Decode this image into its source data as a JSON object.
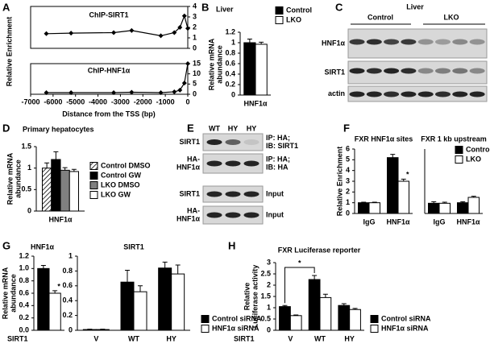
{
  "panel_letters": [
    "A",
    "B",
    "C",
    "D",
    "E",
    "F",
    "G",
    "H"
  ],
  "chart_data": [
    {
      "type": "line",
      "title": "ChIP-SIRT1",
      "ylabel": [
        "Relative Enrichment"
      ],
      "frame": true,
      "yaxis_position": "right",
      "x": [
        -6300,
        -5200,
        -3300,
        -2500,
        -1200,
        -600,
        -350,
        -150,
        0
      ],
      "xlim": [
        -7000,
        0
      ],
      "series": [
        {
          "color": "#000000",
          "values": [
            1.4,
            1.45,
            1.5,
            1.7,
            1.2,
            1.5,
            2.0,
            3.1,
            1.9
          ]
        }
      ],
      "ylim": [
        0,
        4
      ],
      "yticks": [
        0,
        1,
        2,
        3,
        4
      ]
    },
    {
      "type": "line",
      "title": "ChIP-HNF1α",
      "xlabel": "Distance from the TSS (bp)",
      "frame": true,
      "yaxis_position": "right",
      "x": [
        -6300,
        -5200,
        -3300,
        -2500,
        -1200,
        -600,
        -350,
        -150,
        0
      ],
      "xlim": [
        -7000,
        0
      ],
      "xticks": [
        -7000,
        -6000,
        -5000,
        -4000,
        -3000,
        -2000,
        -1000,
        0
      ],
      "series": [
        {
          "color": "#000000",
          "values": [
            0.8,
            0.8,
            0.8,
            1.0,
            0.8,
            1.2,
            2,
            5.5,
            15
          ]
        }
      ],
      "ylim": [
        0,
        15
      ],
      "yticks": [
        0,
        5,
        10,
        15
      ]
    },
    {
      "type": "bar",
      "title": "Liver",
      "ylabel": [
        "Relative mRNA",
        "abundance"
      ],
      "categories": [
        "HNF1α"
      ],
      "series": [
        {
          "name": "Control",
          "color": "#000000",
          "values": [
            1.0
          ],
          "errors": [
            0.07
          ]
        },
        {
          "name": "LKO",
          "color": "#ffffff",
          "values": [
            0.97
          ],
          "errors": [
            0.04
          ]
        }
      ],
      "ylim": [
        0,
        1.2
      ],
      "yticks": [
        0,
        0.2,
        0.4,
        0.6,
        0.8,
        1,
        1.2
      ],
      "legend": true
    },
    {
      "type": "bar",
      "title": "Primary hepatocytes",
      "ylabel": [
        "Relative mRNA",
        "abundance"
      ],
      "categories": [
        "HNF1α"
      ],
      "series": [
        {
          "name": "Control DMSO",
          "color": "#ffffff",
          "pattern": "hatch",
          "values": [
            1.0
          ],
          "errors": [
            0.12
          ]
        },
        {
          "name": "Control GW",
          "color": "#000000",
          "values": [
            1.2
          ],
          "errors": [
            0.18
          ]
        },
        {
          "name": "LKO DMSO",
          "color": "#808080",
          "values": [
            0.95
          ],
          "errors": [
            0.06
          ]
        },
        {
          "name": "LKO GW",
          "color": "#ffffff",
          "values": [
            0.92
          ],
          "errors": [
            0.05
          ]
        }
      ],
      "ylim": [
        0,
        1.5
      ],
      "yticks": [
        0,
        0.5,
        1,
        1.5
      ],
      "legend": true
    },
    {
      "type": "bar",
      "title": "FXR HNF1α sites",
      "ylabel": [
        "Relative Enrichment"
      ],
      "categories": [
        "IgG",
        "HNF1α"
      ],
      "series": [
        {
          "name": "Control",
          "color": "#000000",
          "values": [
            1.0,
            5.2
          ],
          "errors": [
            0.05,
            0.3
          ]
        },
        {
          "name": "LKO",
          "color": "#ffffff",
          "values": [
            1.0,
            3.0
          ],
          "errors": [
            0.05,
            0.2
          ]
        }
      ],
      "ylim": [
        0,
        6
      ],
      "yticks": [
        0,
        1,
        2,
        3,
        4,
        5,
        6
      ],
      "annotations": [
        "*"
      ]
    },
    {
      "type": "bar",
      "title": "FXR 1 kb upstream",
      "categories": [
        "IgG",
        "HNF1α"
      ],
      "series": [
        {
          "name": "Control",
          "color": "#000000",
          "values": [
            0.95,
            1.0
          ],
          "errors": [
            0.15,
            0.1
          ]
        },
        {
          "name": "LKO",
          "color": "#ffffff",
          "values": [
            0.95,
            1.5
          ],
          "errors": [
            0.1,
            0.1
          ]
        }
      ],
      "ylim": [
        0,
        6
      ],
      "legend": true
    },
    {
      "type": "bar",
      "title": "HNF1α",
      "ylabel": [
        "Relative mRNA",
        "abundance"
      ],
      "categories": [
        null
      ],
      "series": [
        {
          "name": "Control siRNA",
          "color": "#000000",
          "values": [
            1.0
          ],
          "errors": [
            0.05
          ]
        },
        {
          "name": "HNF1α siRNA",
          "color": "#ffffff",
          "values": [
            0.6
          ],
          "errors": [
            0.04
          ]
        }
      ],
      "ylim": [
        0,
        1.2
      ],
      "yticks": [
        {
          "value": 0,
          "label": "0.0"
        },
        0.2,
        0.4,
        0.6,
        0.8,
        {
          "value": 1,
          "label": "1.0"
        },
        1.2
      ],
      "annotations": [
        "*"
      ]
    },
    {
      "type": "bar",
      "title": "SIRT1",
      "xlabel": "SIRT1",
      "categories": [
        "V",
        "WT",
        "HY"
      ],
      "series": [
        {
          "name": "Control siRNA",
          "color": "#000000",
          "values": [
            0.01,
            0.65,
            0.84
          ],
          "errors": [
            0.005,
            0.16,
            0.08
          ]
        },
        {
          "name": "HNF1α siRNA",
          "color": "#ffffff",
          "values": [
            0.01,
            0.52,
            0.76
          ],
          "errors": [
            0.005,
            0.08,
            0.12
          ]
        }
      ],
      "ylim": [
        0,
        1
      ],
      "yticks": [
        0,
        0.2,
        0.4,
        0.6,
        0.8,
        1
      ],
      "legend": true
    },
    {
      "type": "bar",
      "title": "FXR Luciferase reporter",
      "ylabel": [
        "Relative",
        "Luciferase activity"
      ],
      "xlabel": "SIRT1",
      "categories": [
        "V",
        "WT",
        "HY"
      ],
      "series": [
        {
          "name": "Control siRNA",
          "color": "#000000",
          "values": [
            1.05,
            2.25,
            1.1
          ],
          "errors": [
            0.05,
            0.18,
            0.08
          ]
        },
        {
          "name": "HNF1α siRNA",
          "color": "#ffffff",
          "values": [
            0.65,
            1.45,
            0.92
          ],
          "errors": [
            0.03,
            0.15,
            0.05
          ]
        }
      ],
      "ylim": [
        0,
        3
      ],
      "yticks": [
        0,
        0.5,
        1,
        1.5,
        2,
        2.5,
        3
      ],
      "legend": true,
      "annotations": [
        "*"
      ]
    }
  ],
  "blot_C": {
    "title": "Liver",
    "groups": [
      "Control",
      "LKO"
    ],
    "rows": [
      "HNF1α",
      "SIRT1",
      "actin"
    ]
  },
  "blot_E": {
    "lanes": [
      "WT",
      "HY",
      "HY"
    ],
    "rows": [
      {
        "protein": [
          "SIRT1"
        ],
        "note": [
          "IP: HA;",
          "IB: SIRT1"
        ]
      },
      {
        "protein": [
          "HA-",
          "HNF1α"
        ],
        "note": [
          "IP: HA;",
          "IB: HA"
        ]
      },
      {
        "protein": [
          "SIRT1"
        ],
        "note": [
          "Input"
        ]
      },
      {
        "protein": [
          "HA-",
          "HNF1α"
        ],
        "note": [
          "Input"
        ]
      }
    ]
  }
}
